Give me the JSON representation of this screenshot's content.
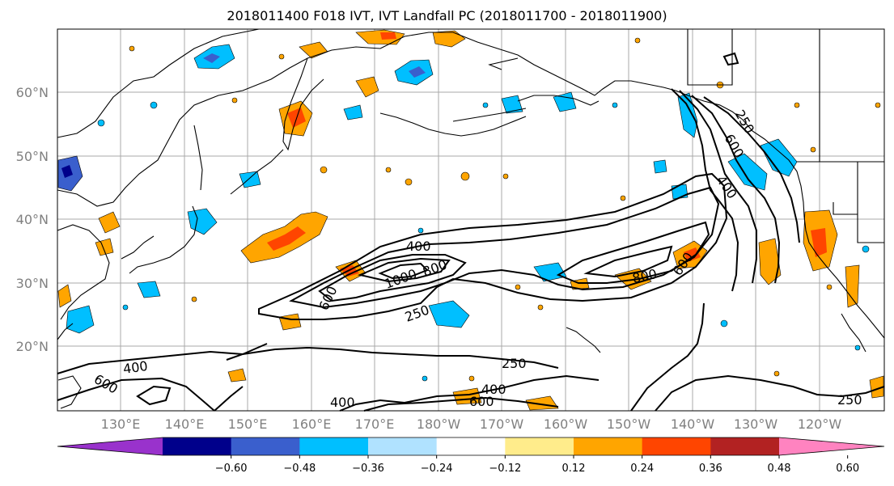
{
  "title": "2018011400 F018 IVT, IVT Landfall PC (2018011700 - 2018011900)",
  "lat_labels": [
    "60°N",
    "50°N",
    "40°N",
    "30°N",
    "20°N"
  ],
  "lon_labels": [
    "130°E",
    "140°E",
    "150°E",
    "160°E",
    "170°E",
    "180°W",
    "170°W",
    "160°W",
    "150°W",
    "140°W",
    "130°W",
    "120°W"
  ],
  "contour_labels": [
    "400",
    "1000",
    "800",
    "600",
    "250",
    "800",
    "600",
    "250",
    "400",
    "600",
    "250",
    "400",
    "600",
    "400",
    "600",
    "400",
    "250"
  ],
  "colorbar": {
    "colors": [
      "#9932cc",
      "#00008b",
      "#3a5fcd",
      "#00bfff",
      "#b0e2ff",
      "#ffffff",
      "#ffec8b",
      "#ffa500",
      "#ff4500",
      "#b22222",
      "#ff83c0"
    ],
    "tick_labels": [
      "−0.60",
      "−0.48",
      "−0.36",
      "−0.24",
      "−0.12",
      "0.12",
      "0.24",
      "0.36",
      "0.48",
      "0.60"
    ]
  }
}
